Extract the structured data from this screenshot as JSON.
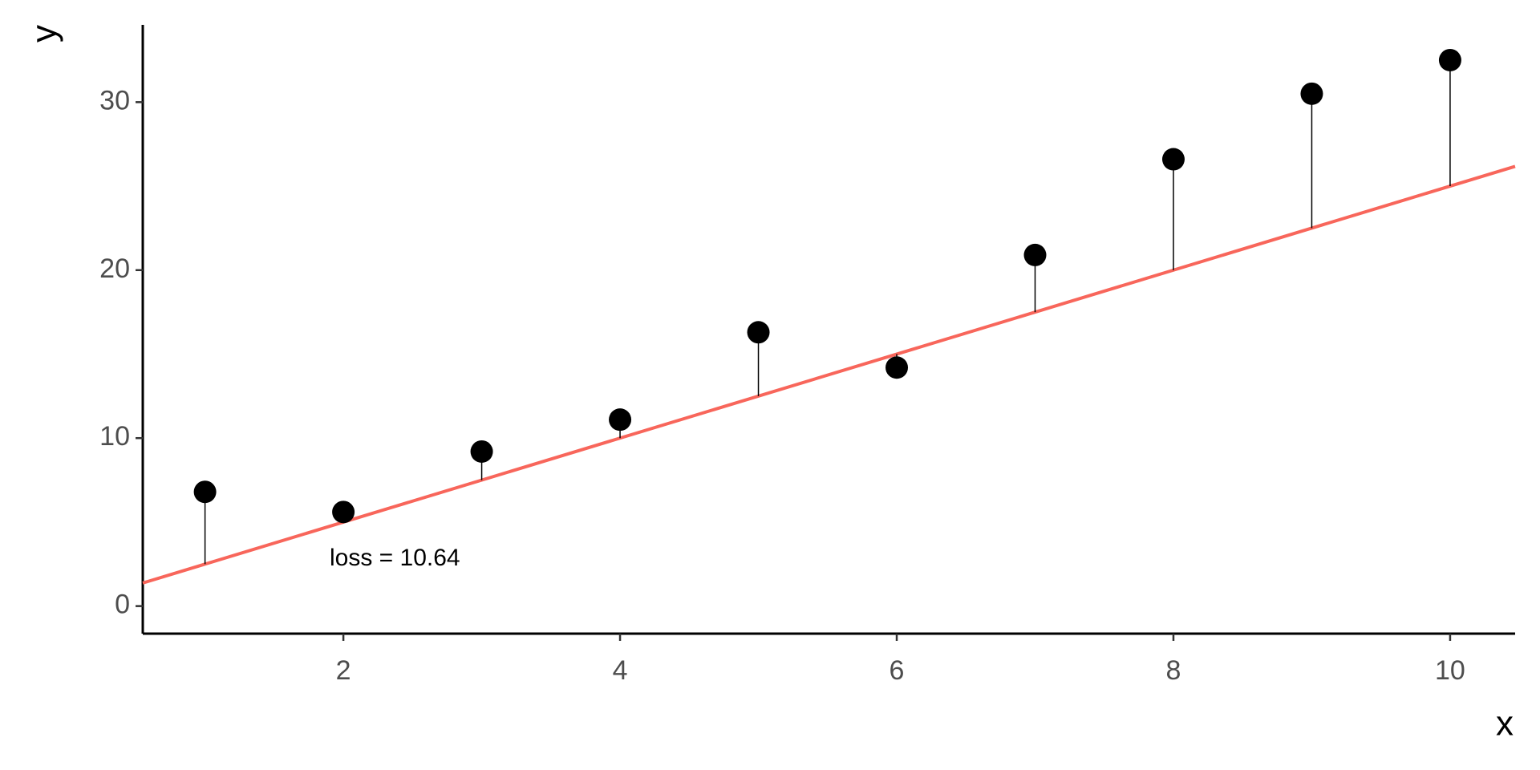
{
  "chart_data": {
    "type": "scatter",
    "x_label": "x",
    "y_label": "y",
    "x": [
      1,
      2,
      3,
      4,
      5,
      6,
      7,
      8,
      9,
      10
    ],
    "y": [
      6.8,
      5.6,
      9.2,
      11.1,
      16.3,
      14.2,
      20.9,
      26.6,
      30.5,
      32.5
    ],
    "color": "#000000",
    "fit": {
      "slope": 2.5,
      "intercept": 0,
      "color": "#f8665b"
    },
    "residual_color": "#000000",
    "annotation": "loss = 10.64",
    "xlim": [
      0.55,
      10.47
    ],
    "ylim": [
      -1.64,
      34.6
    ],
    "xticks": [
      2,
      4,
      6,
      8,
      10
    ],
    "yticks": [
      0,
      10,
      20,
      30
    ],
    "grid": false
  }
}
